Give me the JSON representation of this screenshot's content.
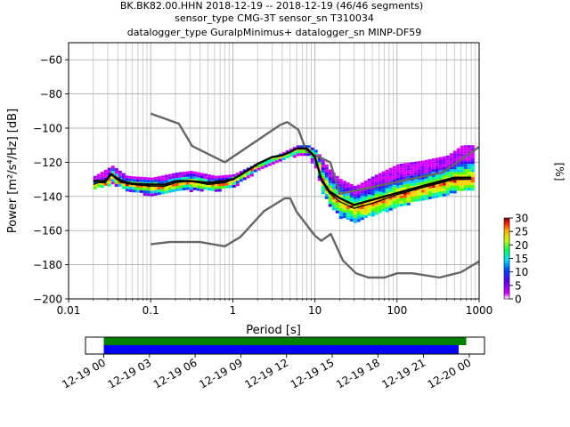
{
  "chart_data": {
    "type": "ppsd",
    "title_lines": [
      "BK.BK82.00.HHN   2018-12-19 -- 2018-12-19  (46/46 segments)",
      "sensor_type CMG-3T sensor_sn T310034",
      "datalogger_type GuralpMinimus+ datalogger_sn MINP-DF59"
    ],
    "xlabel": "Period [s]",
    "ylabel": "Power [m²/s⁴/Hz] [dB]",
    "x_scale": "log",
    "xlim": [
      0.01,
      1000
    ],
    "ylim": [
      -200,
      -50
    ],
    "x_ticks": [
      0.01,
      0.1,
      1,
      10,
      100,
      1000
    ],
    "x_tick_labels": [
      "0.01",
      "0.1",
      "1",
      "10",
      "100",
      "1000"
    ],
    "y_ticks": [
      -200,
      -180,
      -160,
      -140,
      -120,
      -100,
      -80,
      -60
    ],
    "y_tick_labels": [
      "−200",
      "−180",
      "−160",
      "−140",
      "−120",
      "−100",
      "−80",
      "−60"
    ],
    "grid": true,
    "colorbar": {
      "label": "[%]",
      "range": [
        0,
        30
      ],
      "ticks": [
        0,
        5,
        10,
        15,
        20,
        25,
        30
      ],
      "tick_labels": [
        "0",
        "5",
        "10",
        "15",
        "20",
        "25",
        "30"
      ]
    },
    "nhnm": [
      [
        0.1,
        -91.5
      ],
      [
        0.22,
        -97.4
      ],
      [
        0.32,
        -110.5
      ],
      [
        0.8,
        -120
      ],
      [
        3.8,
        -98
      ],
      [
        4.6,
        -96.5
      ],
      [
        6.3,
        -101
      ],
      [
        7.9,
        -113.5
      ],
      [
        15.4,
        -120
      ],
      [
        20,
        -138.5
      ],
      [
        354.8,
        -126
      ],
      [
        1000,
        -111
      ]
    ],
    "nlnm": [
      [
        0.1,
        -168
      ],
      [
        0.17,
        -166.7
      ],
      [
        0.4,
        -166.7
      ],
      [
        0.8,
        -169.2
      ],
      [
        1.24,
        -163.7
      ],
      [
        2.4,
        -148.6
      ],
      [
        4.3,
        -141.1
      ],
      [
        5,
        -141.1
      ],
      [
        6,
        -149
      ],
      [
        10,
        -163
      ],
      [
        12,
        -166
      ],
      [
        15.6,
        -162
      ],
      [
        21.9,
        -177.5
      ],
      [
        31.6,
        -185
      ],
      [
        45,
        -187.5
      ],
      [
        70,
        -187.5
      ],
      [
        101,
        -185
      ],
      [
        154,
        -185
      ],
      [
        328,
        -187.5
      ],
      [
        600,
        -184.4
      ],
      [
        1000,
        -178
      ]
    ],
    "mean": [
      [
        0.02,
        -131
      ],
      [
        0.023,
        -131
      ],
      [
        0.028,
        -131
      ],
      [
        0.033,
        -127
      ],
      [
        0.038,
        -129
      ],
      [
        0.045,
        -131
      ],
      [
        0.06,
        -132.5
      ],
      [
        0.1,
        -133
      ],
      [
        0.15,
        -133
      ],
      [
        0.2,
        -131
      ],
      [
        0.3,
        -131
      ],
      [
        0.5,
        -132
      ],
      [
        0.8,
        -131
      ],
      [
        1,
        -130
      ],
      [
        1.5,
        -125
      ],
      [
        2,
        -121
      ],
      [
        3,
        -117
      ],
      [
        4,
        -116
      ],
      [
        5,
        -114
      ],
      [
        6,
        -112
      ],
      [
        8,
        -112
      ],
      [
        10,
        -117
      ],
      [
        12,
        -130
      ],
      [
        15,
        -137
      ],
      [
        20,
        -141
      ],
      [
        30,
        -145
      ],
      [
        50,
        -142
      ],
      [
        100,
        -138
      ],
      [
        200,
        -134
      ],
      [
        500,
        -129
      ],
      [
        800,
        -129
      ]
    ],
    "mode": [
      [
        0.02,
        -133
      ],
      [
        0.023,
        -132
      ],
      [
        0.028,
        -132
      ],
      [
        0.033,
        -127
      ],
      [
        0.038,
        -130
      ],
      [
        0.045,
        -132
      ],
      [
        0.06,
        -133
      ],
      [
        0.1,
        -134
      ],
      [
        0.15,
        -134
      ],
      [
        0.2,
        -132
      ],
      [
        0.3,
        -131
      ],
      [
        0.5,
        -133
      ],
      [
        0.8,
        -132
      ],
      [
        1,
        -130
      ],
      [
        1.5,
        -125
      ],
      [
        2,
        -121
      ],
      [
        3,
        -117
      ],
      [
        4,
        -116
      ],
      [
        5,
        -114
      ],
      [
        6,
        -112
      ],
      [
        8,
        -112
      ],
      [
        10,
        -117
      ],
      [
        12,
        -131
      ],
      [
        15,
        -138
      ],
      [
        20,
        -143
      ],
      [
        30,
        -147
      ],
      [
        50,
        -144
      ],
      [
        100,
        -139
      ],
      [
        200,
        -135
      ],
      [
        500,
        -130
      ],
      [
        800,
        -130
      ]
    ],
    "density_band": {
      "upper": [
        [
          0.02,
          -128
        ],
        [
          0.033,
          -122
        ],
        [
          0.05,
          -128
        ],
        [
          0.1,
          -129
        ],
        [
          0.2,
          -126
        ],
        [
          0.3,
          -125
        ],
        [
          0.6,
          -128
        ],
        [
          1,
          -127
        ],
        [
          2,
          -120
        ],
        [
          4,
          -114
        ],
        [
          6,
          -110
        ],
        [
          8,
          -110
        ],
        [
          10,
          -113
        ],
        [
          15,
          -125
        ],
        [
          20,
          -130
        ],
        [
          30,
          -134
        ],
        [
          50,
          -128
        ],
        [
          100,
          -121
        ],
        [
          200,
          -119
        ],
        [
          400,
          -116
        ],
        [
          600,
          -110
        ],
        [
          800,
          -110
        ]
      ],
      "lower": [
        [
          0.02,
          -135
        ],
        [
          0.033,
          -132
        ],
        [
          0.05,
          -136
        ],
        [
          0.1,
          -139
        ],
        [
          0.2,
          -136
        ],
        [
          0.3,
          -136
        ],
        [
          0.6,
          -136
        ],
        [
          1,
          -134
        ],
        [
          2,
          -124
        ],
        [
          4,
          -118
        ],
        [
          6,
          -115
        ],
        [
          8,
          -116
        ],
        [
          10,
          -124
        ],
        [
          12,
          -138
        ],
        [
          15,
          -146
        ],
        [
          20,
          -152
        ],
        [
          30,
          -155
        ],
        [
          50,
          -150
        ],
        [
          100,
          -146
        ],
        [
          200,
          -141
        ],
        [
          400,
          -138
        ],
        [
          600,
          -136
        ],
        [
          800,
          -136
        ]
      ]
    },
    "timeline": {
      "tick_labels": [
        "12-19 00",
        "12-19 03",
        "12-19 06",
        "12-19 09",
        "12-19 12",
        "12-19 15",
        "12-19 18",
        "12-19 21",
        "12-20 00"
      ],
      "green_extent_hours": [
        0,
        23.8
      ],
      "blue_extent_hours": [
        0,
        23.3
      ],
      "window_hours": [
        -1.2,
        25.0
      ]
    }
  }
}
